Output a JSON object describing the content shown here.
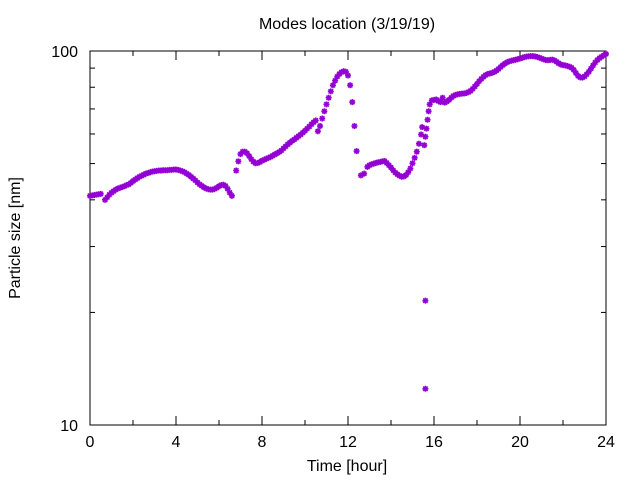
{
  "chart_data": {
    "type": "scatter",
    "title": "Modes location (3/19/19)",
    "xlabel": "Time [hour]",
    "ylabel": "Particle size [nm]",
    "xlim": [
      0,
      24
    ],
    "ylim": [
      10,
      100
    ],
    "yscale": "log",
    "grid": false,
    "legend": "none",
    "xticks": [
      "0",
      "4",
      "8",
      "12",
      "16",
      "20",
      "24"
    ],
    "yticks": [
      "10",
      "100"
    ],
    "marker_color": "#9400d3",
    "series": [
      {
        "points": [
          [
            0.0,
            41.0
          ],
          [
            0.1,
            41.1
          ],
          [
            0.2,
            41.2
          ],
          [
            0.3,
            41.3
          ],
          [
            0.4,
            41.4
          ],
          [
            0.5,
            41.5
          ],
          [
            0.7,
            40.0
          ],
          [
            0.8,
            40.6
          ],
          [
            0.9,
            41.3
          ],
          [
            1.0,
            41.8
          ],
          [
            1.1,
            42.2
          ],
          [
            1.2,
            42.6
          ],
          [
            1.3,
            42.9
          ],
          [
            1.4,
            43.1
          ],
          [
            1.5,
            43.3
          ],
          [
            1.6,
            43.5
          ],
          [
            1.7,
            43.8
          ],
          [
            1.8,
            44.0
          ],
          [
            1.9,
            44.4
          ],
          [
            2.0,
            44.9
          ],
          [
            2.1,
            45.3
          ],
          [
            2.2,
            45.7
          ],
          [
            2.3,
            46.1
          ],
          [
            2.4,
            46.4
          ],
          [
            2.5,
            46.7
          ],
          [
            2.6,
            47.0
          ],
          [
            2.7,
            47.2
          ],
          [
            2.8,
            47.4
          ],
          [
            2.9,
            47.6
          ],
          [
            3.0,
            47.7
          ],
          [
            3.1,
            47.8
          ],
          [
            3.2,
            47.9
          ],
          [
            3.3,
            47.9
          ],
          [
            3.4,
            48.0
          ],
          [
            3.5,
            48.0
          ],
          [
            3.6,
            48.0
          ],
          [
            3.7,
            48.1
          ],
          [
            3.8,
            48.1
          ],
          [
            3.9,
            48.2
          ],
          [
            4.0,
            48.2
          ],
          [
            4.1,
            48.1
          ],
          [
            4.2,
            47.9
          ],
          [
            4.3,
            47.7
          ],
          [
            4.4,
            47.4
          ],
          [
            4.5,
            47.0
          ],
          [
            4.6,
            46.6
          ],
          [
            4.7,
            46.1
          ],
          [
            4.8,
            45.6
          ],
          [
            4.9,
            45.1
          ],
          [
            5.0,
            44.5
          ],
          [
            5.1,
            44.0
          ],
          [
            5.2,
            43.6
          ],
          [
            5.3,
            43.2
          ],
          [
            5.4,
            42.9
          ],
          [
            5.5,
            42.7
          ],
          [
            5.6,
            42.6
          ],
          [
            5.7,
            42.6
          ],
          [
            5.8,
            42.8
          ],
          [
            5.9,
            43.1
          ],
          [
            6.0,
            43.5
          ],
          [
            6.1,
            43.8
          ],
          [
            6.2,
            43.9
          ],
          [
            6.3,
            43.6
          ],
          [
            6.4,
            42.8
          ],
          [
            6.5,
            41.8
          ],
          [
            6.6,
            41.0
          ],
          [
            6.8,
            47.9
          ],
          [
            6.9,
            50.7
          ],
          [
            7.0,
            53.0
          ],
          [
            7.1,
            53.8
          ],
          [
            7.2,
            53.8
          ],
          [
            7.3,
            53.3
          ],
          [
            7.4,
            52.4
          ],
          [
            7.5,
            51.4
          ],
          [
            7.6,
            50.6
          ],
          [
            7.7,
            50.1
          ],
          [
            7.8,
            50.2
          ],
          [
            7.9,
            50.5
          ],
          [
            8.0,
            50.9
          ],
          [
            8.1,
            51.2
          ],
          [
            8.2,
            51.5
          ],
          [
            8.3,
            51.8
          ],
          [
            8.4,
            52.1
          ],
          [
            8.5,
            52.5
          ],
          [
            8.6,
            52.9
          ],
          [
            8.7,
            53.3
          ],
          [
            8.8,
            53.7
          ],
          [
            8.9,
            54.2
          ],
          [
            9.0,
            54.9
          ],
          [
            9.1,
            55.6
          ],
          [
            9.2,
            56.3
          ],
          [
            9.3,
            56.9
          ],
          [
            9.4,
            57.5
          ],
          [
            9.5,
            58.0
          ],
          [
            9.6,
            58.6
          ],
          [
            9.7,
            59.2
          ],
          [
            9.8,
            59.8
          ],
          [
            9.9,
            60.5
          ],
          [
            10.0,
            61.2
          ],
          [
            10.1,
            62.0
          ],
          [
            10.2,
            62.8
          ],
          [
            10.3,
            63.7
          ],
          [
            10.4,
            64.5
          ],
          [
            10.5,
            65.2
          ],
          [
            10.6,
            61.0
          ],
          [
            10.7,
            63.0
          ],
          [
            10.8,
            66.0
          ],
          [
            10.9,
            69.0
          ],
          [
            11.0,
            72.0
          ],
          [
            11.1,
            75.0
          ],
          [
            11.2,
            78.0
          ],
          [
            11.3,
            81.0
          ],
          [
            11.4,
            83.3
          ],
          [
            11.5,
            85.4
          ],
          [
            11.6,
            86.8
          ],
          [
            11.7,
            87.8
          ],
          [
            11.8,
            88.3
          ],
          [
            11.9,
            88.0
          ],
          [
            12.0,
            86.0
          ],
          [
            12.1,
            81.0
          ],
          [
            12.2,
            73.0
          ],
          [
            12.3,
            63.0
          ],
          [
            12.4,
            54.0
          ],
          [
            12.6,
            46.5
          ],
          [
            12.75,
            47.0
          ],
          [
            12.9,
            49.0
          ],
          [
            13.0,
            49.5
          ],
          [
            13.1,
            49.8
          ],
          [
            13.2,
            50.0
          ],
          [
            13.3,
            50.2
          ],
          [
            13.4,
            50.4
          ],
          [
            13.5,
            50.5
          ],
          [
            13.6,
            50.7
          ],
          [
            13.7,
            50.8
          ],
          [
            13.8,
            50.2
          ],
          [
            13.9,
            49.5
          ],
          [
            14.0,
            48.8
          ],
          [
            14.1,
            48.0
          ],
          [
            14.2,
            47.3
          ],
          [
            14.3,
            46.8
          ],
          [
            14.4,
            46.4
          ],
          [
            14.5,
            46.1
          ],
          [
            14.6,
            46.2
          ],
          [
            14.7,
            46.6
          ],
          [
            14.8,
            47.4
          ],
          [
            14.9,
            48.5
          ],
          [
            15.0,
            50.1
          ],
          [
            15.1,
            51.8
          ],
          [
            15.2,
            53.8
          ],
          [
            15.3,
            56.5
          ],
          [
            15.4,
            59.8
          ],
          [
            15.45,
            62.6
          ],
          [
            15.55,
            56.0
          ],
          [
            15.6,
            59.0
          ],
          [
            15.65,
            62.0
          ],
          [
            15.7,
            65.5
          ],
          [
            15.75,
            69.0
          ],
          [
            15.8,
            72.0
          ],
          [
            15.9,
            73.8
          ],
          [
            15.6,
            21.5
          ],
          [
            15.6,
            12.5
          ],
          [
            16.0,
            74.0
          ],
          [
            16.1,
            74.2
          ],
          [
            16.2,
            73.5
          ],
          [
            16.3,
            73.0
          ],
          [
            16.4,
            75.0
          ],
          [
            16.5,
            72.8
          ],
          [
            16.6,
            73.3
          ],
          [
            16.7,
            74.0
          ],
          [
            16.8,
            75.0
          ],
          [
            16.9,
            75.8
          ],
          [
            17.0,
            76.3
          ],
          [
            17.1,
            76.6
          ],
          [
            17.2,
            76.8
          ],
          [
            17.3,
            76.9
          ],
          [
            17.4,
            77.0
          ],
          [
            17.5,
            77.2
          ],
          [
            17.6,
            77.6
          ],
          [
            17.7,
            78.2
          ],
          [
            17.8,
            79.2
          ],
          [
            17.9,
            80.4
          ],
          [
            18.0,
            81.7
          ],
          [
            18.1,
            83.0
          ],
          [
            18.2,
            84.2
          ],
          [
            18.3,
            85.3
          ],
          [
            18.4,
            86.2
          ],
          [
            18.5,
            86.8
          ],
          [
            18.6,
            87.1
          ],
          [
            18.7,
            87.4
          ],
          [
            18.8,
            87.9
          ],
          [
            18.9,
            88.6
          ],
          [
            19.0,
            89.5
          ],
          [
            19.1,
            90.6
          ],
          [
            19.2,
            91.7
          ],
          [
            19.3,
            92.6
          ],
          [
            19.4,
            93.3
          ],
          [
            19.5,
            93.8
          ],
          [
            19.6,
            94.2
          ],
          [
            19.7,
            94.5
          ],
          [
            19.8,
            94.8
          ],
          [
            19.9,
            95.1
          ],
          [
            20.0,
            95.5
          ],
          [
            20.1,
            95.9
          ],
          [
            20.2,
            96.3
          ],
          [
            20.3,
            96.6
          ],
          [
            20.4,
            96.8
          ],
          [
            20.5,
            96.9
          ],
          [
            20.6,
            96.9
          ],
          [
            20.7,
            96.7
          ],
          [
            20.8,
            96.4
          ],
          [
            20.9,
            96.0
          ],
          [
            21.0,
            95.5
          ],
          [
            21.1,
            95.0
          ],
          [
            21.2,
            94.6
          ],
          [
            21.3,
            94.5
          ],
          [
            21.4,
            94.7
          ],
          [
            21.5,
            94.8
          ],
          [
            21.6,
            94.4
          ],
          [
            21.7,
            93.6
          ],
          [
            21.8,
            92.7
          ],
          [
            21.9,
            92.0
          ],
          [
            22.0,
            91.7
          ],
          [
            22.1,
            91.5
          ],
          [
            22.2,
            91.2
          ],
          [
            22.3,
            90.8
          ],
          [
            22.4,
            90.2
          ],
          [
            22.5,
            89.0
          ],
          [
            22.6,
            87.3
          ],
          [
            22.7,
            85.8
          ],
          [
            22.8,
            85.0
          ],
          [
            22.9,
            84.9
          ],
          [
            23.0,
            85.5
          ],
          [
            23.1,
            86.6
          ],
          [
            23.2,
            88.0
          ],
          [
            23.3,
            89.7
          ],
          [
            23.4,
            91.5
          ],
          [
            23.5,
            93.2
          ],
          [
            23.6,
            94.6
          ],
          [
            23.7,
            95.7
          ],
          [
            23.8,
            96.6
          ],
          [
            23.9,
            97.4
          ],
          [
            24.0,
            98.2
          ]
        ]
      }
    ]
  }
}
